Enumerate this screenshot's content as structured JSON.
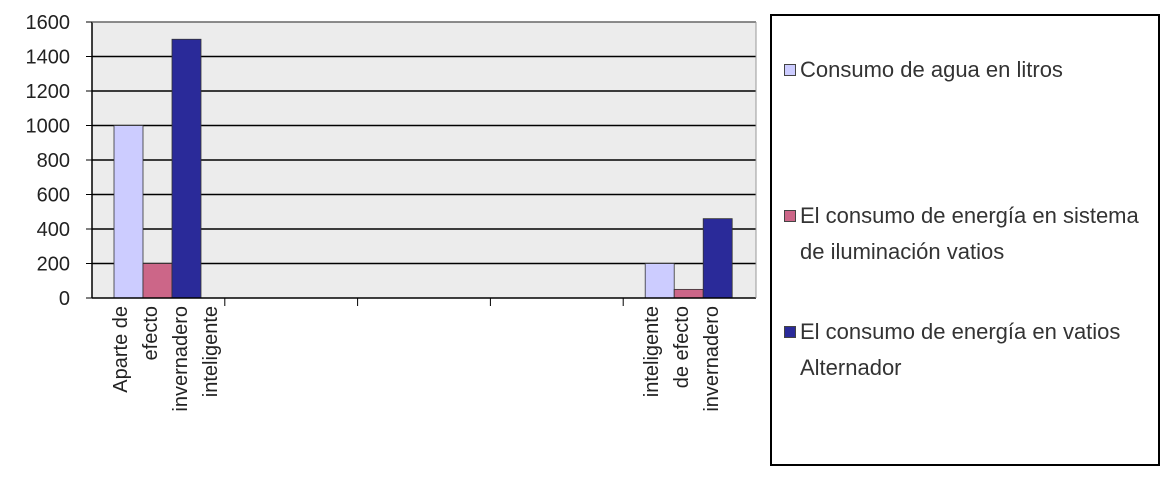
{
  "chart_data": {
    "type": "bar",
    "categories": [
      [
        "Aparte de",
        "efecto",
        "invernadero",
        "inteligente"
      ],
      [
        "inteligente",
        "de efecto",
        "invernadero"
      ]
    ],
    "series": [
      {
        "name": "Consumo de agua en litros",
        "values": [
          1000,
          200
        ],
        "color": "#ccccff"
      },
      {
        "name": "El consumo de energía en sistema de iluminación vatios",
        "values": [
          200,
          50
        ],
        "color": "#cc6688"
      },
      {
        "name": "El consumo de energía en vatios Alternador",
        "values": [
          1500,
          460
        ],
        "color": "#2a2a99"
      }
    ],
    "yticks": [
      "0",
      "200",
      "400",
      "600",
      "800",
      "1000",
      "1200",
      "1400",
      "1600"
    ],
    "ylim": [
      0,
      1600
    ],
    "grid": true,
    "plot_background": "#ececec",
    "legend_position": "right"
  }
}
